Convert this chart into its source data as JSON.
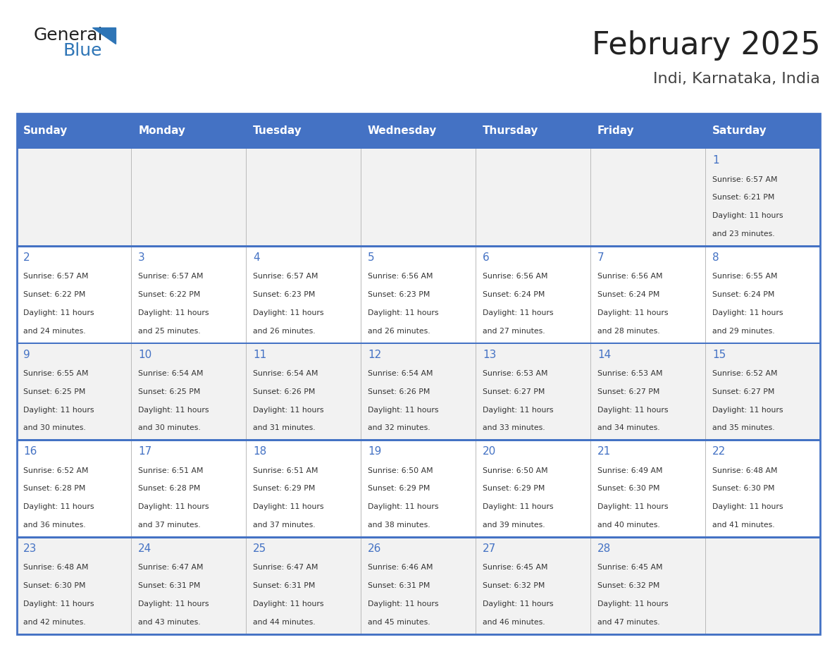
{
  "title": "February 2025",
  "subtitle": "Indi, Karnataka, India",
  "header_bg": "#4472C4",
  "header_text_color": "#FFFFFF",
  "cell_bg_light": "#F2F2F2",
  "cell_bg_white": "#FFFFFF",
  "day_number_color": "#4472C4",
  "text_color": "#333333",
  "border_color": "#4472C4",
  "days_of_week": [
    "Sunday",
    "Monday",
    "Tuesday",
    "Wednesday",
    "Thursday",
    "Friday",
    "Saturday"
  ],
  "calendar_data": [
    [
      {
        "day": null,
        "sunrise": null,
        "sunset": null,
        "daylight": null
      },
      {
        "day": null,
        "sunrise": null,
        "sunset": null,
        "daylight": null
      },
      {
        "day": null,
        "sunrise": null,
        "sunset": null,
        "daylight": null
      },
      {
        "day": null,
        "sunrise": null,
        "sunset": null,
        "daylight": null
      },
      {
        "day": null,
        "sunrise": null,
        "sunset": null,
        "daylight": null
      },
      {
        "day": null,
        "sunrise": null,
        "sunset": null,
        "daylight": null
      },
      {
        "day": 1,
        "sunrise": "6:57 AM",
        "sunset": "6:21 PM",
        "daylight": "11 hours\nand 23 minutes."
      }
    ],
    [
      {
        "day": 2,
        "sunrise": "6:57 AM",
        "sunset": "6:22 PM",
        "daylight": "11 hours\nand 24 minutes."
      },
      {
        "day": 3,
        "sunrise": "6:57 AM",
        "sunset": "6:22 PM",
        "daylight": "11 hours\nand 25 minutes."
      },
      {
        "day": 4,
        "sunrise": "6:57 AM",
        "sunset": "6:23 PM",
        "daylight": "11 hours\nand 26 minutes."
      },
      {
        "day": 5,
        "sunrise": "6:56 AM",
        "sunset": "6:23 PM",
        "daylight": "11 hours\nand 26 minutes."
      },
      {
        "day": 6,
        "sunrise": "6:56 AM",
        "sunset": "6:24 PM",
        "daylight": "11 hours\nand 27 minutes."
      },
      {
        "day": 7,
        "sunrise": "6:56 AM",
        "sunset": "6:24 PM",
        "daylight": "11 hours\nand 28 minutes."
      },
      {
        "day": 8,
        "sunrise": "6:55 AM",
        "sunset": "6:24 PM",
        "daylight": "11 hours\nand 29 minutes."
      }
    ],
    [
      {
        "day": 9,
        "sunrise": "6:55 AM",
        "sunset": "6:25 PM",
        "daylight": "11 hours\nand 30 minutes."
      },
      {
        "day": 10,
        "sunrise": "6:54 AM",
        "sunset": "6:25 PM",
        "daylight": "11 hours\nand 30 minutes."
      },
      {
        "day": 11,
        "sunrise": "6:54 AM",
        "sunset": "6:26 PM",
        "daylight": "11 hours\nand 31 minutes."
      },
      {
        "day": 12,
        "sunrise": "6:54 AM",
        "sunset": "6:26 PM",
        "daylight": "11 hours\nand 32 minutes."
      },
      {
        "day": 13,
        "sunrise": "6:53 AM",
        "sunset": "6:27 PM",
        "daylight": "11 hours\nand 33 minutes."
      },
      {
        "day": 14,
        "sunrise": "6:53 AM",
        "sunset": "6:27 PM",
        "daylight": "11 hours\nand 34 minutes."
      },
      {
        "day": 15,
        "sunrise": "6:52 AM",
        "sunset": "6:27 PM",
        "daylight": "11 hours\nand 35 minutes."
      }
    ],
    [
      {
        "day": 16,
        "sunrise": "6:52 AM",
        "sunset": "6:28 PM",
        "daylight": "11 hours\nand 36 minutes."
      },
      {
        "day": 17,
        "sunrise": "6:51 AM",
        "sunset": "6:28 PM",
        "daylight": "11 hours\nand 37 minutes."
      },
      {
        "day": 18,
        "sunrise": "6:51 AM",
        "sunset": "6:29 PM",
        "daylight": "11 hours\nand 37 minutes."
      },
      {
        "day": 19,
        "sunrise": "6:50 AM",
        "sunset": "6:29 PM",
        "daylight": "11 hours\nand 38 minutes."
      },
      {
        "day": 20,
        "sunrise": "6:50 AM",
        "sunset": "6:29 PM",
        "daylight": "11 hours\nand 39 minutes."
      },
      {
        "day": 21,
        "sunrise": "6:49 AM",
        "sunset": "6:30 PM",
        "daylight": "11 hours\nand 40 minutes."
      },
      {
        "day": 22,
        "sunrise": "6:48 AM",
        "sunset": "6:30 PM",
        "daylight": "11 hours\nand 41 minutes."
      }
    ],
    [
      {
        "day": 23,
        "sunrise": "6:48 AM",
        "sunset": "6:30 PM",
        "daylight": "11 hours\nand 42 minutes."
      },
      {
        "day": 24,
        "sunrise": "6:47 AM",
        "sunset": "6:31 PM",
        "daylight": "11 hours\nand 43 minutes."
      },
      {
        "day": 25,
        "sunrise": "6:47 AM",
        "sunset": "6:31 PM",
        "daylight": "11 hours\nand 44 minutes."
      },
      {
        "day": 26,
        "sunrise": "6:46 AM",
        "sunset": "6:31 PM",
        "daylight": "11 hours\nand 45 minutes."
      },
      {
        "day": 27,
        "sunrise": "6:45 AM",
        "sunset": "6:32 PM",
        "daylight": "11 hours\nand 46 minutes."
      },
      {
        "day": 28,
        "sunrise": "6:45 AM",
        "sunset": "6:32 PM",
        "daylight": "11 hours\nand 47 minutes."
      },
      {
        "day": null,
        "sunrise": null,
        "sunset": null,
        "daylight": null
      }
    ]
  ],
  "logo_text_general": "General",
  "logo_text_blue": "Blue",
  "general_blue_logo_color": "#2E75B6",
  "general_text_color": "#222222"
}
